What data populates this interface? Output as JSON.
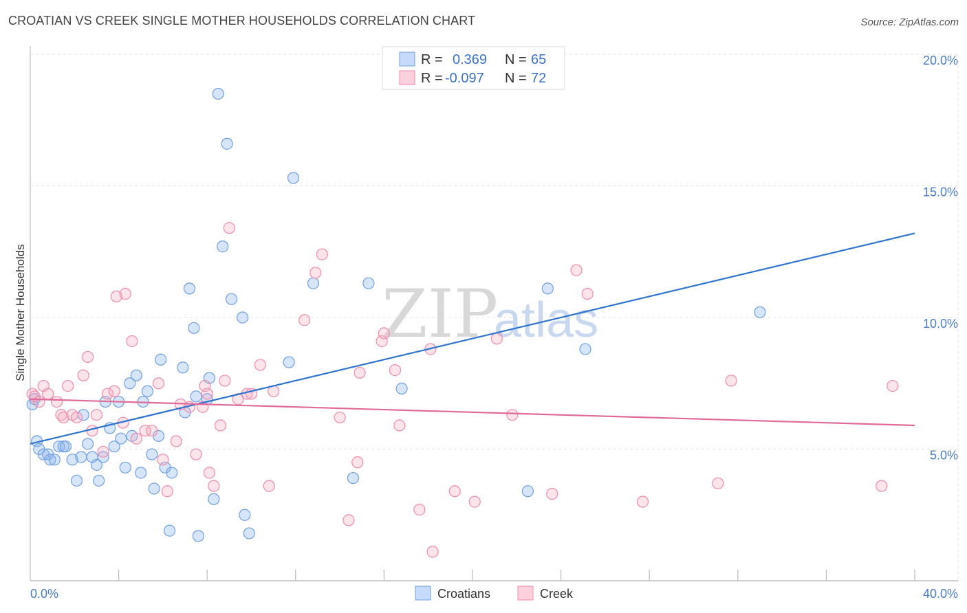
{
  "header": {
    "title": "CROATIAN VS CREEK SINGLE MOTHER HOUSEHOLDS CORRELATION CHART",
    "source": "Source: ZipAtlas.com"
  },
  "watermark": {
    "zip": "ZIP",
    "atlas": "atlas"
  },
  "legend": {
    "rows": [
      {
        "r_label": "R =",
        "r_value": "0.369",
        "n_label": "N =",
        "n_value": "65",
        "color": "#6f9fe3"
      },
      {
        "r_label": "R =",
        "r_value": "-0.097",
        "n_label": "N =",
        "n_value": "72",
        "color": "#f08aaa"
      }
    ]
  },
  "bottom_legend": [
    {
      "label": "Croatians",
      "color": "#6f9fe3"
    },
    {
      "label": "Creek",
      "color": "#f08aaa"
    }
  ],
  "chart_data": {
    "type": "scatter",
    "title": "CROATIAN VS CREEK SINGLE MOTHER HOUSEHOLDS CORRELATION CHART",
    "xlabel": "",
    "ylabel": "Single Mother Households",
    "xlim": [
      0,
      40
    ],
    "ylim": [
      0,
      20
    ],
    "x_tick_labels": [
      "0.0%",
      "40.0%"
    ],
    "y_ticks": [
      5,
      10,
      15,
      20
    ],
    "y_tick_labels": [
      "5.0%",
      "10.0%",
      "15.0%",
      "20.0%"
    ],
    "grid": true,
    "series": [
      {
        "name": "Croatians",
        "color": "#6f9fe3",
        "trend": [
          [
            0,
            5.2
          ],
          [
            40,
            13.2
          ]
        ],
        "points": [
          [
            0.3,
            5.3
          ],
          [
            0.4,
            5.0
          ],
          [
            0.6,
            4.8
          ],
          [
            0.8,
            4.8
          ],
          [
            0.9,
            4.6
          ],
          [
            1.1,
            4.6
          ],
          [
            1.3,
            5.1
          ],
          [
            1.5,
            5.1
          ],
          [
            1.6,
            5.1
          ],
          [
            1.9,
            4.6
          ],
          [
            2.1,
            3.8
          ],
          [
            2.3,
            4.7
          ],
          [
            2.4,
            6.3
          ],
          [
            2.6,
            5.2
          ],
          [
            2.8,
            4.7
          ],
          [
            3.0,
            4.4
          ],
          [
            3.1,
            3.8
          ],
          [
            3.3,
            4.7
          ],
          [
            3.4,
            6.8
          ],
          [
            3.6,
            5.8
          ],
          [
            3.8,
            5.1
          ],
          [
            4.0,
            6.8
          ],
          [
            4.1,
            5.4
          ],
          [
            4.3,
            4.3
          ],
          [
            4.5,
            7.5
          ],
          [
            4.6,
            5.5
          ],
          [
            4.8,
            7.8
          ],
          [
            5.0,
            4.1
          ],
          [
            5.1,
            6.8
          ],
          [
            5.3,
            7.2
          ],
          [
            5.5,
            4.8
          ],
          [
            5.6,
            3.5
          ],
          [
            5.8,
            5.5
          ],
          [
            5.9,
            8.4
          ],
          [
            6.1,
            4.3
          ],
          [
            6.3,
            1.9
          ],
          [
            6.4,
            4.1
          ],
          [
            6.9,
            8.1
          ],
          [
            7.0,
            6.4
          ],
          [
            7.2,
            11.1
          ],
          [
            7.4,
            9.6
          ],
          [
            7.5,
            7.0
          ],
          [
            7.6,
            1.7
          ],
          [
            8.0,
            6.9
          ],
          [
            8.1,
            7.7
          ],
          [
            8.3,
            3.1
          ],
          [
            8.5,
            18.5
          ],
          [
            8.7,
            12.7
          ],
          [
            8.9,
            16.6
          ],
          [
            9.1,
            10.7
          ],
          [
            9.6,
            10.0
          ],
          [
            9.7,
            2.5
          ],
          [
            9.9,
            1.8
          ],
          [
            11.7,
            8.3
          ],
          [
            11.9,
            15.3
          ],
          [
            12.8,
            11.3
          ],
          [
            14.6,
            3.9
          ],
          [
            15.3,
            11.3
          ],
          [
            16.8,
            7.3
          ],
          [
            22.5,
            3.4
          ],
          [
            23.4,
            11.1
          ],
          [
            25.1,
            8.8
          ],
          [
            33.0,
            10.2
          ],
          [
            0.1,
            6.7
          ],
          [
            0.2,
            6.9
          ]
        ]
      },
      {
        "name": "Creek",
        "color": "#f08aaa",
        "trend": [
          [
            0,
            6.9
          ],
          [
            40,
            5.9
          ]
        ],
        "points": [
          [
            0.1,
            7.1
          ],
          [
            0.2,
            7.0
          ],
          [
            0.4,
            6.8
          ],
          [
            0.6,
            7.4
          ],
          [
            0.8,
            7.1
          ],
          [
            1.2,
            6.8
          ],
          [
            1.4,
            6.3
          ],
          [
            1.5,
            6.2
          ],
          [
            1.7,
            7.4
          ],
          [
            1.9,
            6.3
          ],
          [
            2.1,
            6.2
          ],
          [
            2.4,
            7.8
          ],
          [
            2.6,
            8.5
          ],
          [
            2.8,
            5.7
          ],
          [
            3.0,
            6.3
          ],
          [
            3.3,
            4.9
          ],
          [
            3.5,
            7.1
          ],
          [
            3.8,
            7.2
          ],
          [
            3.9,
            10.8
          ],
          [
            4.2,
            6.0
          ],
          [
            4.3,
            10.9
          ],
          [
            4.6,
            9.1
          ],
          [
            4.8,
            5.4
          ],
          [
            5.2,
            5.7
          ],
          [
            5.5,
            5.7
          ],
          [
            5.8,
            7.5
          ],
          [
            6.0,
            4.6
          ],
          [
            6.2,
            3.4
          ],
          [
            6.6,
            5.3
          ],
          [
            6.8,
            6.7
          ],
          [
            7.2,
            6.6
          ],
          [
            7.5,
            4.8
          ],
          [
            7.8,
            6.6
          ],
          [
            7.9,
            7.4
          ],
          [
            8.0,
            7.1
          ],
          [
            8.1,
            4.1
          ],
          [
            8.3,
            3.6
          ],
          [
            8.6,
            5.9
          ],
          [
            8.8,
            7.6
          ],
          [
            9.0,
            13.4
          ],
          [
            9.4,
            6.9
          ],
          [
            9.8,
            7.1
          ],
          [
            10.0,
            7.1
          ],
          [
            10.4,
            8.2
          ],
          [
            10.8,
            3.6
          ],
          [
            11.0,
            7.2
          ],
          [
            12.4,
            9.9
          ],
          [
            12.9,
            11.7
          ],
          [
            13.2,
            12.4
          ],
          [
            14.0,
            6.2
          ],
          [
            14.4,
            2.3
          ],
          [
            14.8,
            4.5
          ],
          [
            14.9,
            7.9
          ],
          [
            15.9,
            9.1
          ],
          [
            16.0,
            9.4
          ],
          [
            16.5,
            8.0
          ],
          [
            16.7,
            5.9
          ],
          [
            17.6,
            2.7
          ],
          [
            18.1,
            8.8
          ],
          [
            18.2,
            1.1
          ],
          [
            19.2,
            3.4
          ],
          [
            20.1,
            3.0
          ],
          [
            21.1,
            9.2
          ],
          [
            21.8,
            6.3
          ],
          [
            23.6,
            3.3
          ],
          [
            24.7,
            11.8
          ],
          [
            25.2,
            10.9
          ],
          [
            27.7,
            3.0
          ],
          [
            31.1,
            3.7
          ],
          [
            31.7,
            7.6
          ],
          [
            38.5,
            3.6
          ],
          [
            39.0,
            7.4
          ]
        ]
      }
    ]
  }
}
